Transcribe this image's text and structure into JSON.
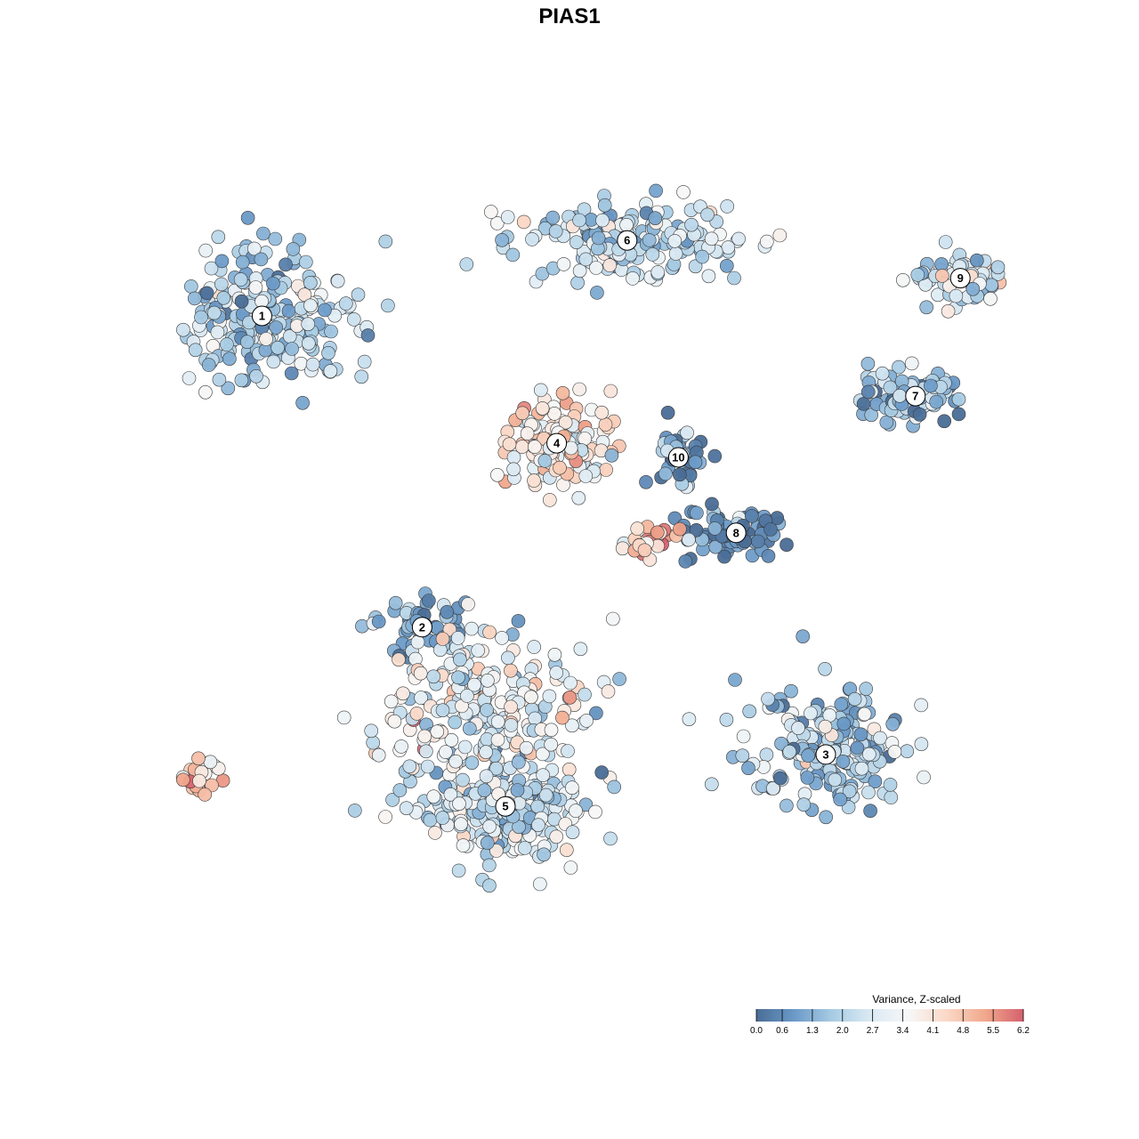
{
  "chart_data": {
    "type": "scatter",
    "title": "PIAS1",
    "xlabel": "",
    "ylabel": "",
    "grid": false,
    "color_scale": {
      "title": "Variance, Z-scaled",
      "min": 0.0,
      "max": 6.2,
      "ticks": [
        "0.0",
        "0.6",
        "1.3",
        "2.0",
        "2.7",
        "3.4",
        "4.1",
        "4.8",
        "5.5",
        "6.2"
      ],
      "colors": [
        "#4a6d96",
        "#6b9ac8",
        "#a8cce4",
        "#dbeaf3",
        "#f7f7f7",
        "#fbd8c6",
        "#f0a88c",
        "#d6606d"
      ],
      "placement": "bottom-right"
    },
    "clusters": [
      {
        "label": "1",
        "x": -4.8,
        "y": 5.0,
        "value": 2.0
      },
      {
        "label": "2",
        "x": -2.3,
        "y": -1.6,
        "value": 1.2
      },
      {
        "label": "3",
        "x": 4.0,
        "y": -4.3,
        "value": 1.9
      },
      {
        "label": "4",
        "x": -0.2,
        "y": 2.3,
        "value": 3.7
      },
      {
        "label": "5",
        "x": -1.0,
        "y": -5.4,
        "value": 2.3
      },
      {
        "label": "6",
        "x": 0.9,
        "y": 6.6,
        "value": 2.1
      },
      {
        "label": "7",
        "x": 5.4,
        "y": 3.3,
        "value": 1.6
      },
      {
        "label": "8",
        "x": 2.6,
        "y": 0.4,
        "value": 0.7
      },
      {
        "label": "9",
        "x": 6.1,
        "y": 5.8,
        "value": 2.4
      },
      {
        "label": "10",
        "x": 1.7,
        "y": 2.0,
        "value": 1.1
      },
      {
        "label": "",
        "x": -5.8,
        "y": -4.8,
        "value": 4.6
      },
      {
        "label": "",
        "x": -1.4,
        "y": -3.3,
        "value": 3.0
      },
      {
        "label": "",
        "x": 1.3,
        "y": 0.2,
        "value": 4.6
      }
    ]
  }
}
